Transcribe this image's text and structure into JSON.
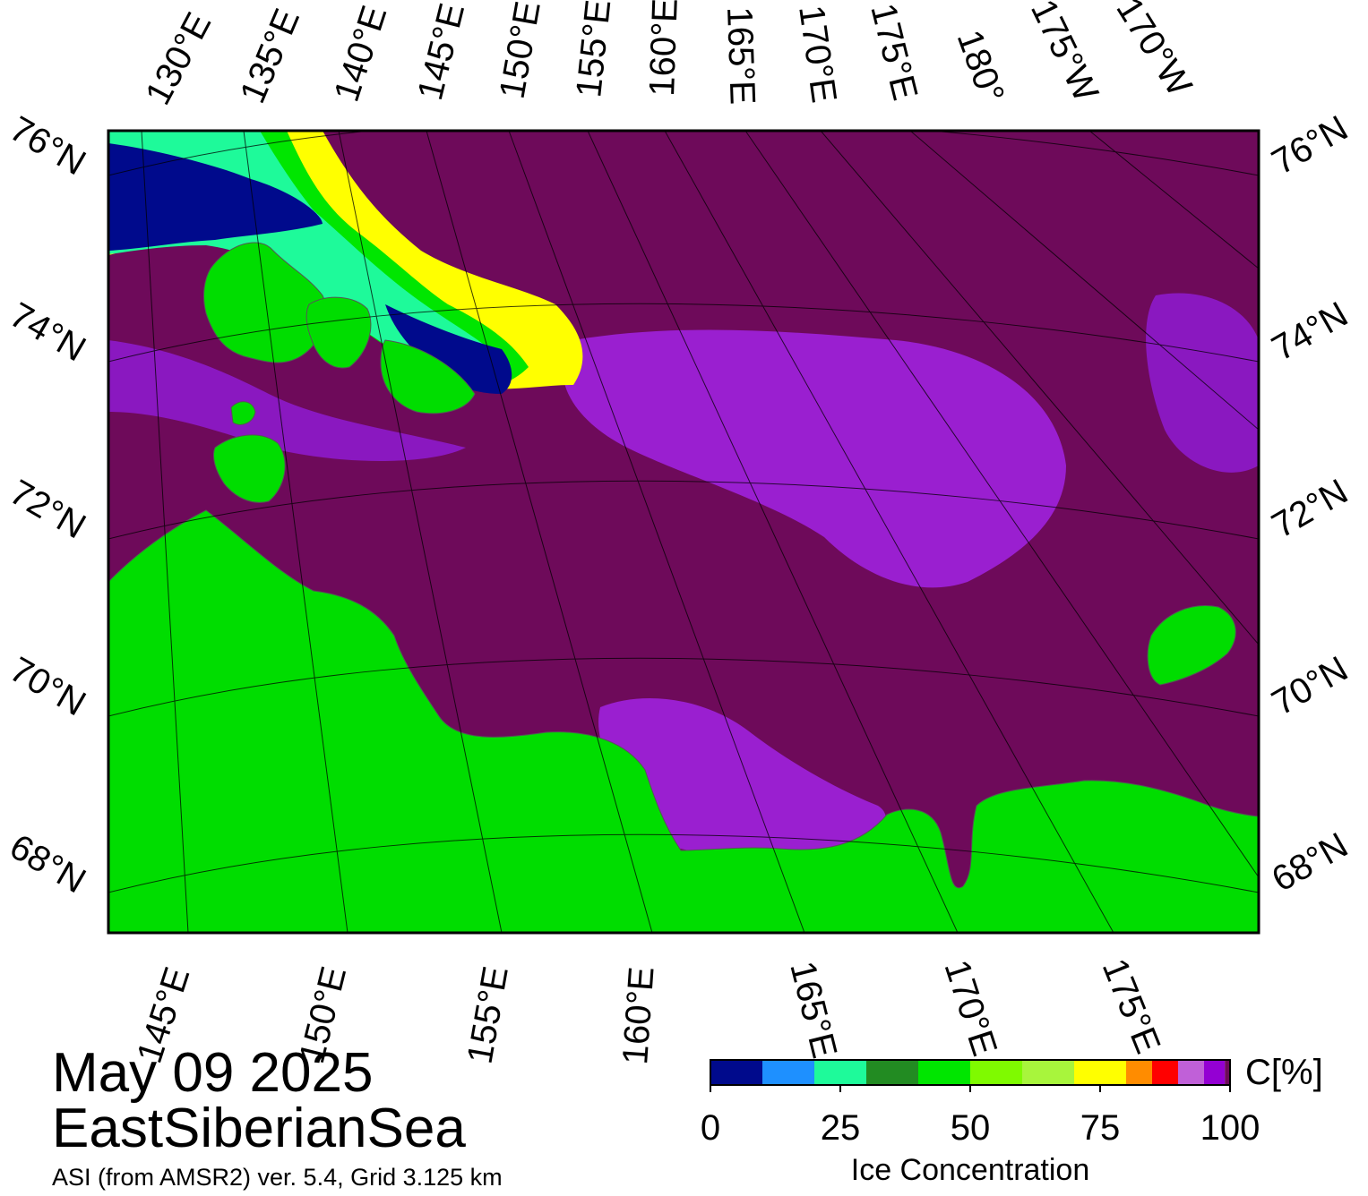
{
  "title": {
    "date": "May 09 2025",
    "region": "EastSiberianSea",
    "subtitle": "ASI (from AMSR2) ver. 5.4,  Grid 3.125 km"
  },
  "map": {
    "top_longitude_labels": [
      "130°E",
      "135°E",
      "140°E",
      "145°E",
      "150°E",
      "155°E",
      "160°E",
      "165°E",
      "170°E",
      "175°E",
      "180°",
      "175°W",
      "170°W"
    ],
    "bottom_longitude_labels": [
      "145°E",
      "150°E",
      "155°E",
      "160°E",
      "165°E",
      "170°E",
      "175°E"
    ],
    "left_latitude_labels": [
      "76°N",
      "74°N",
      "72°N",
      "70°N",
      "68°N"
    ],
    "right_latitude_labels": [
      "76°N",
      "74°N",
      "72°N",
      "70°N",
      "68°N"
    ],
    "colors": {
      "open_water_high_conc": "#6e0a5a",
      "land": "#00dd00",
      "coast_gray": "#888888"
    }
  },
  "legend": {
    "title": "Ice Concentration",
    "unit": "C[%]",
    "ticks": [
      "0",
      "25",
      "50",
      "75",
      "100"
    ],
    "tick_values": [
      0,
      25,
      50,
      75,
      100
    ],
    "bins": [
      {
        "from": 0,
        "to": 10,
        "color": "#000a8c"
      },
      {
        "from": 10,
        "to": 20,
        "color": "#1e90ff"
      },
      {
        "from": 20,
        "to": 30,
        "color": "#1efa9a"
      },
      {
        "from": 30,
        "to": 40,
        "color": "#228b22"
      },
      {
        "from": 40,
        "to": 50,
        "color": "#00e600"
      },
      {
        "from": 50,
        "to": 60,
        "color": "#7ffa00"
      },
      {
        "from": 60,
        "to": 70,
        "color": "#a8f53c"
      },
      {
        "from": 70,
        "to": 80,
        "color": "#ffff00"
      },
      {
        "from": 80,
        "to": 85,
        "color": "#ff8c00"
      },
      {
        "from": 85,
        "to": 90,
        "color": "#ff0000"
      },
      {
        "from": 90,
        "to": 95,
        "color": "#c060d8"
      },
      {
        "from": 95,
        "to": 99,
        "color": "#9400d3"
      },
      {
        "from": 99,
        "to": 100,
        "color": "#6e0a5a"
      }
    ]
  }
}
